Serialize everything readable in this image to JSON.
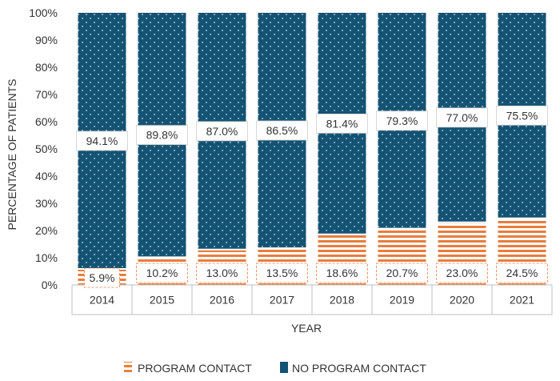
{
  "chart_data": {
    "type": "bar",
    "stacked": true,
    "categories": [
      "2014",
      "2015",
      "2016",
      "2017",
      "2018",
      "2019",
      "2020",
      "2021"
    ],
    "series": [
      {
        "name": "PROGRAM CONTACT",
        "values": [
          5.9,
          10.2,
          13.0,
          13.5,
          18.6,
          20.7,
          23.0,
          24.5
        ],
        "labels": [
          "5.9%",
          "10.2%",
          "13.0%",
          "13.5%",
          "18.6%",
          "20.7%",
          "23.0%",
          "24.5%"
        ],
        "color": "#E87D3E",
        "pattern": "horizontal-stripes"
      },
      {
        "name": "NO PROGRAM CONTACT",
        "values": [
          94.1,
          89.8,
          87.0,
          86.5,
          81.4,
          79.3,
          77.0,
          75.5
        ],
        "labels": [
          "94.1%",
          "89.8%",
          "87.0%",
          "86.5%",
          "81.4%",
          "79.3%",
          "77.0%",
          "75.5%"
        ],
        "color": "#145373",
        "pattern": "dots"
      }
    ],
    "xlabel": "YEAR",
    "ylabel": "PERCENTAGE OF PATIENTS",
    "ylim": [
      0,
      100
    ],
    "yticks": [
      "0%",
      "10%",
      "20%",
      "30%",
      "40%",
      "50%",
      "60%",
      "70%",
      "80%",
      "90%",
      "100%"
    ],
    "legend_position": "bottom"
  }
}
